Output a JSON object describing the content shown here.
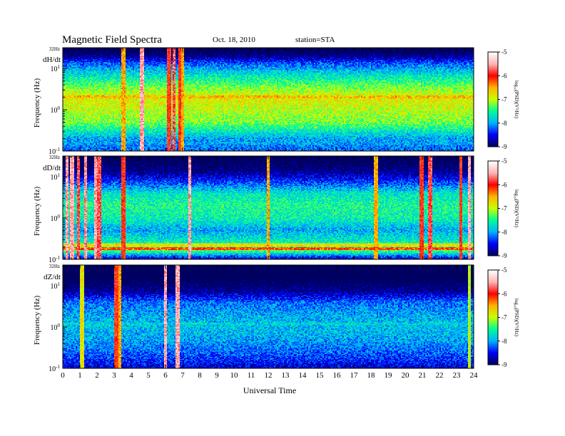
{
  "chart_data": {
    "type": "heatmap",
    "title": "Magnetic Field Spectra",
    "date": "Oct. 18, 2010",
    "station": "station=STA",
    "xlabel": "Universal Time",
    "x_ticks": [
      "0",
      "1",
      "2",
      "3",
      "4",
      "5",
      "6",
      "7",
      "8",
      "9",
      "10",
      "11",
      "12",
      "13",
      "14",
      "15",
      "16",
      "17",
      "18",
      "19",
      "20",
      "21",
      "22",
      "23",
      "24"
    ],
    "xlim": [
      0,
      24
    ],
    "ylabel": "Frequency (Hz)",
    "y_scale": "log",
    "ylim": [
      0.1,
      32
    ],
    "y_ticks": [
      {
        "label": "10",
        "exp": "-1",
        "value": 0.1
      },
      {
        "label": "10",
        "exp": "0",
        "value": 1
      },
      {
        "label": "10",
        "exp": "1",
        "value": 10
      },
      {
        "label": "32Hz",
        "exp": "",
        "value": 32
      }
    ],
    "colorbar": {
      "label": "log₁₀(PSD)(V²/Hz)",
      "range": [
        -9,
        -5
      ],
      "ticks": [
        "-5",
        "-6",
        "-7",
        "-8",
        "-9"
      ],
      "colors": [
        "#000060",
        "#0000ff",
        "#00b4ff",
        "#00ff96",
        "#c8ff00",
        "#ffb400",
        "#ff0000",
        "#ffb4b4",
        "#ffffff"
      ]
    },
    "panels": [
      {
        "label": "dH/dt",
        "profile": [
          {
            "f": 0.1,
            "v": -8.2
          },
          {
            "f": 0.2,
            "v": -8.0
          },
          {
            "f": 0.5,
            "v": -7.2
          },
          {
            "f": 1,
            "v": -7.0
          },
          {
            "f": 2,
            "v": -6.8
          },
          {
            "f": 3,
            "v": -7.1
          },
          {
            "f": 6,
            "v": -7.6
          },
          {
            "f": 10,
            "v": -8.0
          },
          {
            "f": 14,
            "v": -8.3
          },
          {
            "f": 22,
            "v": -9.0
          },
          {
            "f": 32,
            "v": -9.3
          }
        ],
        "bands": [
          {
            "f": 2.0,
            "v": -6.6
          },
          {
            "f": 0.15,
            "v": -8.0
          }
        ],
        "spikes": [
          {
            "t": 4.6,
            "v": -5.5
          },
          {
            "t": 6.2,
            "v": -6.0
          },
          {
            "t": 6.5,
            "v": -5.8
          },
          {
            "t": 6.8,
            "v": -6.0
          },
          {
            "t": 7.0,
            "v": -6.5
          },
          {
            "t": 3.5,
            "v": -6.5
          }
        ]
      },
      {
        "label": "dD/dt",
        "profile": [
          {
            "f": 0.1,
            "v": -8.6
          },
          {
            "f": 0.18,
            "v": -7.0
          },
          {
            "f": 0.25,
            "v": -7.6
          },
          {
            "f": 0.5,
            "v": -8.0
          },
          {
            "f": 1,
            "v": -7.6
          },
          {
            "f": 2,
            "v": -7.5
          },
          {
            "f": 4,
            "v": -7.7
          },
          {
            "f": 8,
            "v": -8.4
          },
          {
            "f": 14,
            "v": -8.9
          },
          {
            "f": 32,
            "v": -9.3
          }
        ],
        "bands": [
          {
            "f": 0.18,
            "v": -6.2
          },
          {
            "f": 0.22,
            "v": -6.8
          }
        ],
        "spikes": [
          {
            "t": 0.2,
            "v": -5.5
          },
          {
            "t": 0.5,
            "v": -5.5
          },
          {
            "t": 0.9,
            "v": -5.8
          },
          {
            "t": 1.3,
            "v": -5.6
          },
          {
            "t": 1.9,
            "v": -5.5
          },
          {
            "t": 2.1,
            "v": -5.8
          },
          {
            "t": 3.5,
            "v": -6.0
          },
          {
            "t": 7.4,
            "v": -5.5
          },
          {
            "t": 12.0,
            "v": -6.5
          },
          {
            "t": 18.3,
            "v": -6.5
          },
          {
            "t": 21.0,
            "v": -6.0
          },
          {
            "t": 21.5,
            "v": -5.8
          },
          {
            "t": 23.3,
            "v": -6.0
          },
          {
            "t": 23.8,
            "v": -5.5
          }
        ]
      },
      {
        "label": "dZ/dt",
        "profile": [
          {
            "f": 0.1,
            "v": -8.6
          },
          {
            "f": 0.2,
            "v": -8.3
          },
          {
            "f": 0.5,
            "v": -8.0
          },
          {
            "f": 1,
            "v": -7.9
          },
          {
            "f": 2,
            "v": -8.0
          },
          {
            "f": 4,
            "v": -8.2
          },
          {
            "f": 8,
            "v": -8.9
          },
          {
            "f": 14,
            "v": -9.2
          },
          {
            "f": 32,
            "v": -9.4
          }
        ],
        "bands": [
          {
            "f": 1.2,
            "v": -7.8
          }
        ],
        "spikes": [
          {
            "t": 1.1,
            "v": -6.8
          },
          {
            "t": 3.1,
            "v": -6.0
          },
          {
            "t": 3.3,
            "v": -6.5
          },
          {
            "t": 6.0,
            "v": -5.5
          },
          {
            "t": 6.7,
            "v": -5.5
          },
          {
            "t": 23.8,
            "v": -7.0
          }
        ]
      }
    ]
  }
}
